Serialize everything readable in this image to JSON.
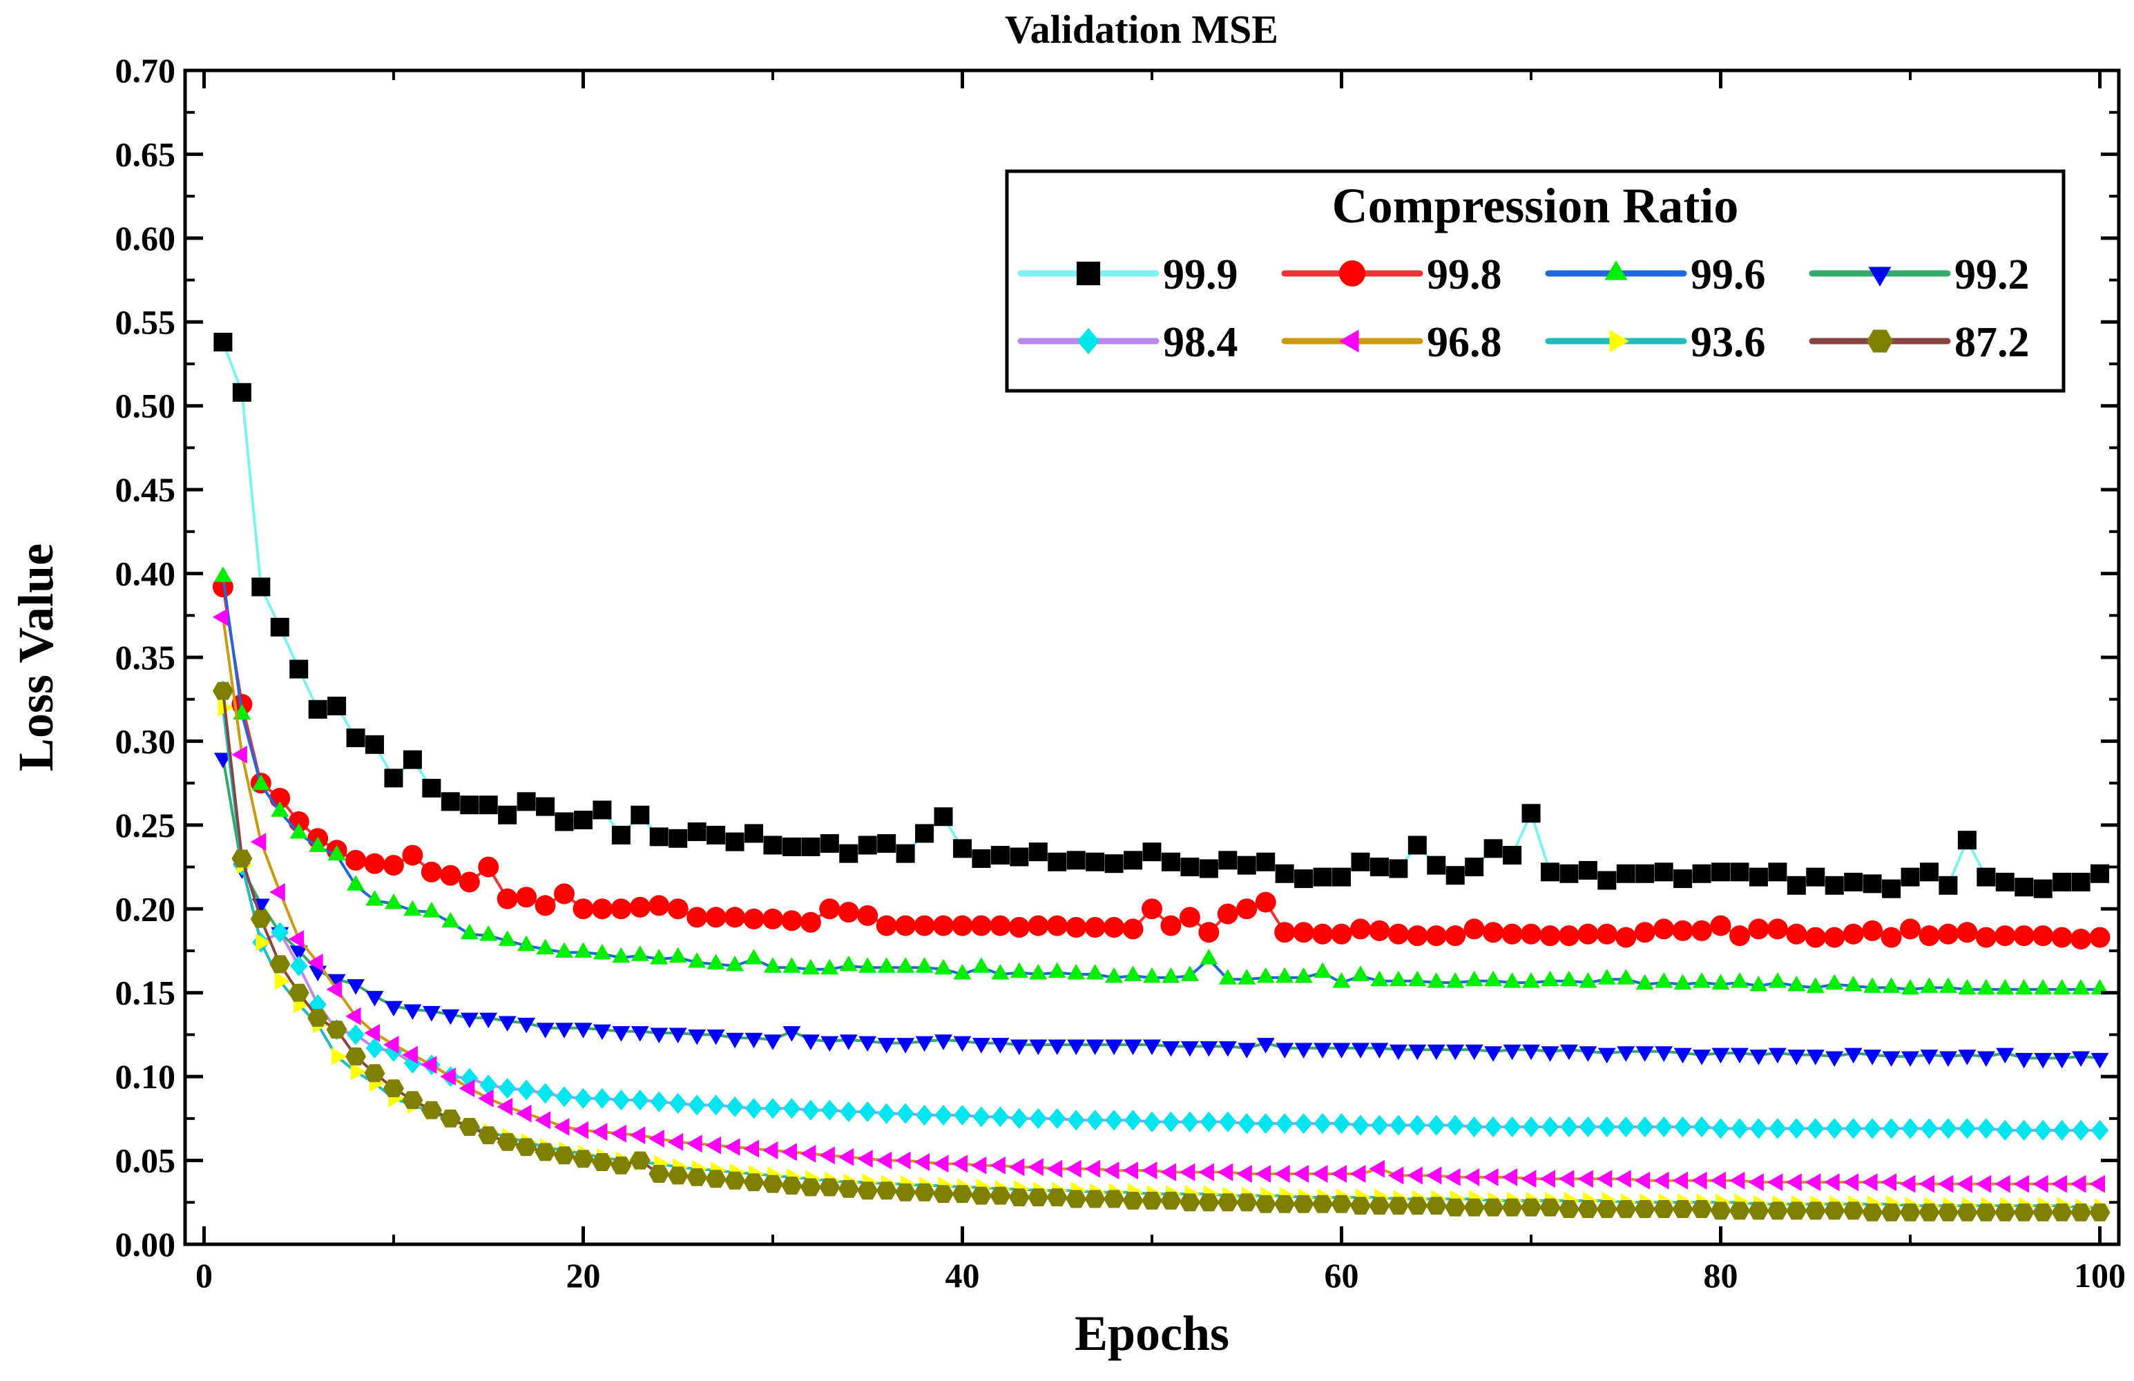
{
  "chart_data": {
    "type": "line",
    "title": "Validation MSE",
    "xlabel": "Epochs",
    "ylabel": "Loss Value",
    "xlim": [
      -1,
      101
    ],
    "ylim": [
      0.0,
      0.7
    ],
    "xticks": [
      0,
      20,
      40,
      60,
      80,
      100
    ],
    "yticks": [
      0.0,
      0.05,
      0.1,
      0.15,
      0.2,
      0.25,
      0.3,
      0.35,
      0.4,
      0.45,
      0.5,
      0.55,
      0.6,
      0.65,
      0.7
    ],
    "xtick_labels": [
      "0",
      "20",
      "40",
      "60",
      "80",
      "100"
    ],
    "ytick_labels": [
      "0.00",
      "0.05",
      "0.10",
      "0.15",
      "0.20",
      "0.25",
      "0.30",
      "0.35",
      "0.40",
      "0.45",
      "0.50",
      "0.55",
      "0.60",
      "0.65",
      "0.70"
    ],
    "legend": {
      "title": "Compression Ratio",
      "position": "top-right",
      "columns": 4
    },
    "x": [
      1,
      2,
      3,
      4,
      5,
      6,
      7,
      8,
      9,
      10,
      11,
      12,
      13,
      14,
      15,
      16,
      17,
      18,
      19,
      20,
      21,
      22,
      23,
      24,
      25,
      26,
      27,
      28,
      29,
      30,
      31,
      32,
      33,
      34,
      35,
      36,
      37,
      38,
      39,
      40,
      41,
      42,
      43,
      44,
      45,
      46,
      47,
      48,
      49,
      50,
      51,
      52,
      53,
      54,
      55,
      56,
      57,
      58,
      59,
      60,
      61,
      62,
      63,
      64,
      65,
      66,
      67,
      68,
      69,
      70,
      71,
      72,
      73,
      74,
      75,
      76,
      77,
      78,
      79,
      80,
      81,
      82,
      83,
      84,
      85,
      86,
      87,
      88,
      89,
      90,
      91,
      92,
      93,
      94,
      95,
      96,
      97,
      98,
      99,
      100
    ],
    "series": [
      {
        "name": "99.9",
        "line_color": "#7df2f2",
        "marker": "square",
        "marker_color": "#000000",
        "values": [
          0.538,
          0.508,
          0.392,
          0.368,
          0.343,
          0.319,
          0.321,
          0.302,
          0.298,
          0.278,
          0.289,
          0.272,
          0.264,
          0.262,
          0.262,
          0.256,
          0.264,
          0.261,
          0.252,
          0.253,
          0.259,
          0.244,
          0.256,
          0.243,
          0.242,
          0.246,
          0.244,
          0.24,
          0.245,
          0.238,
          0.237,
          0.237,
          0.239,
          0.233,
          0.238,
          0.239,
          0.233,
          0.245,
          0.255,
          0.236,
          0.23,
          0.232,
          0.231,
          0.234,
          0.228,
          0.229,
          0.228,
          0.227,
          0.229,
          0.234,
          0.228,
          0.225,
          0.224,
          0.229,
          0.226,
          0.228,
          0.221,
          0.218,
          0.219,
          0.219,
          0.228,
          0.225,
          0.224,
          0.238,
          0.226,
          0.22,
          0.225,
          0.236,
          0.232,
          0.257,
          0.222,
          0.221,
          0.223,
          0.217,
          0.221,
          0.221,
          0.222,
          0.218,
          0.221,
          0.222,
          0.222,
          0.219,
          0.222,
          0.214,
          0.219,
          0.214,
          0.216,
          0.215,
          0.212,
          0.219,
          0.222,
          0.214,
          0.241,
          0.219,
          0.216,
          0.213,
          0.212,
          0.216,
          0.216,
          0.221
        ]
      },
      {
        "name": "99.8",
        "line_color": "#ee3333",
        "marker": "circle",
        "marker_color": "#ff0000",
        "values": [
          0.392,
          0.322,
          0.275,
          0.266,
          0.252,
          0.242,
          0.235,
          0.229,
          0.227,
          0.226,
          0.232,
          0.222,
          0.22,
          0.216,
          0.225,
          0.206,
          0.207,
          0.202,
          0.209,
          0.2,
          0.2,
          0.2,
          0.201,
          0.202,
          0.2,
          0.195,
          0.195,
          0.195,
          0.194,
          0.194,
          0.193,
          0.192,
          0.2,
          0.198,
          0.196,
          0.19,
          0.19,
          0.19,
          0.19,
          0.19,
          0.19,
          0.19,
          0.189,
          0.19,
          0.19,
          0.189,
          0.189,
          0.189,
          0.188,
          0.2,
          0.19,
          0.195,
          0.186,
          0.197,
          0.2,
          0.204,
          0.186,
          0.186,
          0.185,
          0.185,
          0.188,
          0.187,
          0.185,
          0.184,
          0.184,
          0.184,
          0.188,
          0.186,
          0.185,
          0.185,
          0.184,
          0.184,
          0.185,
          0.185,
          0.183,
          0.186,
          0.188,
          0.187,
          0.187,
          0.19,
          0.184,
          0.188,
          0.188,
          0.185,
          0.183,
          0.183,
          0.185,
          0.187,
          0.183,
          0.188,
          0.184,
          0.185,
          0.186,
          0.183,
          0.184,
          0.184,
          0.184,
          0.183,
          0.182,
          0.183
        ]
      },
      {
        "name": "99.6",
        "line_color": "#2266dd",
        "marker": "triangle-up",
        "marker_color": "#00ee00",
        "values": [
          0.398,
          0.316,
          0.274,
          0.258,
          0.245,
          0.237,
          0.232,
          0.214,
          0.205,
          0.203,
          0.199,
          0.198,
          0.192,
          0.185,
          0.184,
          0.181,
          0.178,
          0.176,
          0.174,
          0.174,
          0.173,
          0.171,
          0.172,
          0.17,
          0.171,
          0.168,
          0.167,
          0.166,
          0.17,
          0.165,
          0.165,
          0.164,
          0.164,
          0.166,
          0.165,
          0.165,
          0.165,
          0.165,
          0.164,
          0.161,
          0.165,
          0.161,
          0.162,
          0.161,
          0.162,
          0.161,
          0.161,
          0.159,
          0.16,
          0.159,
          0.159,
          0.16,
          0.17,
          0.158,
          0.158,
          0.159,
          0.159,
          0.159,
          0.162,
          0.156,
          0.16,
          0.157,
          0.157,
          0.157,
          0.156,
          0.156,
          0.157,
          0.157,
          0.156,
          0.156,
          0.157,
          0.157,
          0.156,
          0.158,
          0.158,
          0.155,
          0.156,
          0.155,
          0.156,
          0.155,
          0.156,
          0.154,
          0.156,
          0.154,
          0.153,
          0.155,
          0.154,
          0.153,
          0.153,
          0.152,
          0.153,
          0.153,
          0.152,
          0.152,
          0.152,
          0.152,
          0.152,
          0.152,
          0.152,
          0.152
        ]
      },
      {
        "name": "99.2",
        "line_color": "#33aa66",
        "marker": "triangle-down",
        "marker_color": "#0000ff",
        "values": [
          0.29,
          0.224,
          0.203,
          0.186,
          0.175,
          0.163,
          0.158,
          0.155,
          0.148,
          0.142,
          0.14,
          0.139,
          0.137,
          0.135,
          0.135,
          0.133,
          0.132,
          0.129,
          0.129,
          0.129,
          0.128,
          0.127,
          0.127,
          0.126,
          0.126,
          0.125,
          0.125,
          0.123,
          0.123,
          0.122,
          0.127,
          0.122,
          0.121,
          0.122,
          0.121,
          0.12,
          0.12,
          0.121,
          0.122,
          0.121,
          0.12,
          0.12,
          0.119,
          0.119,
          0.119,
          0.119,
          0.119,
          0.119,
          0.119,
          0.119,
          0.118,
          0.118,
          0.118,
          0.118,
          0.117,
          0.12,
          0.117,
          0.117,
          0.117,
          0.117,
          0.117,
          0.117,
          0.116,
          0.116,
          0.116,
          0.116,
          0.116,
          0.115,
          0.116,
          0.116,
          0.115,
          0.116,
          0.115,
          0.114,
          0.115,
          0.115,
          0.115,
          0.114,
          0.113,
          0.114,
          0.114,
          0.113,
          0.114,
          0.113,
          0.113,
          0.112,
          0.114,
          0.113,
          0.112,
          0.112,
          0.113,
          0.112,
          0.113,
          0.112,
          0.114,
          0.111,
          0.111,
          0.111,
          0.112,
          0.111
        ]
      },
      {
        "name": "98.4",
        "line_color": "#bb88ee",
        "marker": "diamond",
        "marker_color": "#00e5ee",
        "values": [
          0.33,
          0.226,
          0.18,
          0.186,
          0.166,
          0.143,
          0.128,
          0.125,
          0.117,
          0.115,
          0.108,
          0.107,
          0.1,
          0.099,
          0.095,
          0.093,
          0.092,
          0.09,
          0.088,
          0.087,
          0.087,
          0.086,
          0.086,
          0.085,
          0.084,
          0.083,
          0.083,
          0.082,
          0.081,
          0.081,
          0.081,
          0.08,
          0.08,
          0.079,
          0.079,
          0.078,
          0.078,
          0.077,
          0.077,
          0.077,
          0.076,
          0.076,
          0.075,
          0.075,
          0.075,
          0.074,
          0.074,
          0.074,
          0.074,
          0.073,
          0.073,
          0.073,
          0.073,
          0.073,
          0.072,
          0.072,
          0.072,
          0.072,
          0.072,
          0.072,
          0.071,
          0.071,
          0.071,
          0.071,
          0.071,
          0.071,
          0.07,
          0.07,
          0.07,
          0.07,
          0.07,
          0.07,
          0.07,
          0.07,
          0.07,
          0.07,
          0.07,
          0.07,
          0.07,
          0.069,
          0.069,
          0.069,
          0.069,
          0.069,
          0.069,
          0.069,
          0.069,
          0.069,
          0.069,
          0.069,
          0.069,
          0.069,
          0.069,
          0.069,
          0.068,
          0.068,
          0.068,
          0.068,
          0.068,
          0.068
        ]
      },
      {
        "name": "96.8",
        "line_color": "#cc9911",
        "marker": "triangle-left",
        "marker_color": "#ff00ff",
        "values": [
          0.374,
          0.292,
          0.24,
          0.21,
          0.182,
          0.168,
          0.152,
          0.136,
          0.126,
          0.119,
          0.113,
          0.107,
          0.1,
          0.093,
          0.087,
          0.082,
          0.078,
          0.074,
          0.07,
          0.068,
          0.067,
          0.066,
          0.065,
          0.063,
          0.061,
          0.06,
          0.059,
          0.058,
          0.057,
          0.056,
          0.055,
          0.054,
          0.053,
          0.052,
          0.051,
          0.05,
          0.05,
          0.049,
          0.048,
          0.048,
          0.047,
          0.047,
          0.046,
          0.046,
          0.045,
          0.045,
          0.045,
          0.044,
          0.044,
          0.044,
          0.043,
          0.043,
          0.043,
          0.043,
          0.042,
          0.042,
          0.042,
          0.042,
          0.042,
          0.042,
          0.042,
          0.045,
          0.041,
          0.041,
          0.041,
          0.04,
          0.04,
          0.04,
          0.04,
          0.039,
          0.039,
          0.039,
          0.039,
          0.039,
          0.039,
          0.038,
          0.038,
          0.038,
          0.038,
          0.038,
          0.038,
          0.037,
          0.037,
          0.037,
          0.037,
          0.037,
          0.037,
          0.037,
          0.037,
          0.036,
          0.036,
          0.036,
          0.036,
          0.036,
          0.036,
          0.036,
          0.036,
          0.036,
          0.036,
          0.036
        ]
      },
      {
        "name": "93.6",
        "line_color": "#22bbbb",
        "marker": "triangle-right",
        "marker_color": "#ffff00",
        "values": [
          0.32,
          0.226,
          0.18,
          0.157,
          0.143,
          0.131,
          0.112,
          0.103,
          0.096,
          0.087,
          0.083,
          0.079,
          0.074,
          0.07,
          0.067,
          0.064,
          0.061,
          0.058,
          0.056,
          0.054,
          0.052,
          0.05,
          0.049,
          0.048,
          0.046,
          0.045,
          0.044,
          0.043,
          0.042,
          0.041,
          0.04,
          0.039,
          0.038,
          0.037,
          0.037,
          0.036,
          0.036,
          0.035,
          0.035,
          0.034,
          0.034,
          0.033,
          0.033,
          0.032,
          0.032,
          0.032,
          0.031,
          0.031,
          0.031,
          0.03,
          0.03,
          0.03,
          0.03,
          0.029,
          0.029,
          0.029,
          0.029,
          0.028,
          0.028,
          0.028,
          0.028,
          0.028,
          0.027,
          0.027,
          0.027,
          0.027,
          0.027,
          0.026,
          0.026,
          0.026,
          0.026,
          0.026,
          0.026,
          0.026,
          0.025,
          0.025,
          0.025,
          0.025,
          0.025,
          0.025,
          0.025,
          0.024,
          0.024,
          0.024,
          0.024,
          0.024,
          0.024,
          0.024,
          0.024,
          0.023,
          0.023,
          0.023,
          0.023,
          0.023,
          0.023,
          0.023,
          0.023,
          0.023,
          0.022,
          0.022
        ]
      },
      {
        "name": "87.2",
        "line_color": "#884444",
        "marker": "hexagon",
        "marker_color": "#808000",
        "values": [
          0.33,
          0.23,
          0.194,
          0.167,
          0.15,
          0.135,
          0.128,
          0.112,
          0.102,
          0.093,
          0.086,
          0.08,
          0.075,
          0.07,
          0.065,
          0.061,
          0.058,
          0.055,
          0.053,
          0.051,
          0.049,
          0.047,
          0.05,
          0.042,
          0.041,
          0.04,
          0.039,
          0.038,
          0.037,
          0.036,
          0.035,
          0.034,
          0.034,
          0.033,
          0.032,
          0.032,
          0.031,
          0.031,
          0.03,
          0.03,
          0.029,
          0.029,
          0.028,
          0.028,
          0.028,
          0.027,
          0.027,
          0.027,
          0.026,
          0.026,
          0.026,
          0.025,
          0.025,
          0.025,
          0.025,
          0.024,
          0.024,
          0.024,
          0.024,
          0.024,
          0.023,
          0.023,
          0.023,
          0.023,
          0.023,
          0.022,
          0.022,
          0.022,
          0.022,
          0.022,
          0.022,
          0.021,
          0.021,
          0.021,
          0.021,
          0.021,
          0.021,
          0.021,
          0.021,
          0.02,
          0.02,
          0.02,
          0.02,
          0.02,
          0.02,
          0.02,
          0.02,
          0.019,
          0.019,
          0.019,
          0.019,
          0.019,
          0.019,
          0.019,
          0.019,
          0.019,
          0.019,
          0.019,
          0.019,
          0.019
        ]
      }
    ]
  }
}
